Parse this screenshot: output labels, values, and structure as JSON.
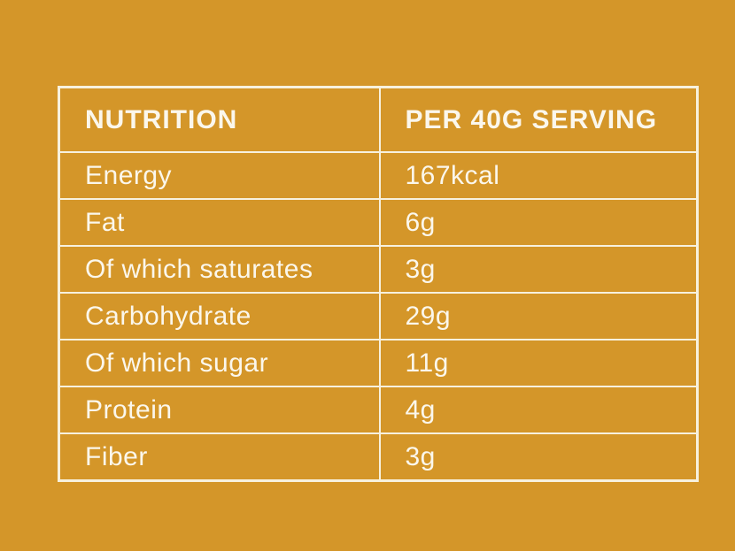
{
  "theme": {
    "background_color": "#D49629",
    "border_color": "#F7F1DE",
    "text_color": "#FBF7EC"
  },
  "table": {
    "columns": [
      {
        "label": "NUTRITION"
      },
      {
        "label": "PER 40G SERVING"
      }
    ],
    "rows": [
      {
        "label": "Energy",
        "value": "167kcal"
      },
      {
        "label": "Fat",
        "value": "6g"
      },
      {
        "label": "Of which saturates",
        "value": "3g"
      },
      {
        "label": "Carbohydrate",
        "value": "29g"
      },
      {
        "label": "Of which sugar",
        "value": "11g"
      },
      {
        "label": "Protein",
        "value": "4g"
      },
      {
        "label": "Fiber",
        "value": "3g"
      }
    ]
  }
}
